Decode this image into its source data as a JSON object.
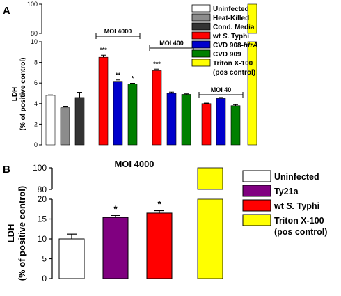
{
  "chart_data": [
    {
      "panel": "A",
      "type": "bar",
      "title": "",
      "ylabel_line1": "LDH",
      "ylabel_line2": "(% of positive control)",
      "yticks_lower": [
        "0",
        "2",
        "4",
        "6",
        "8",
        "10"
      ],
      "yticks_upper": [
        "80",
        "100"
      ],
      "ylim_lower": [
        0,
        10
      ],
      "ylim_upper": [
        80,
        100
      ],
      "axis_break": true,
      "groups": [
        {
          "label": "",
          "bars": [
            {
              "series": "Uninfected",
              "value": 4.8,
              "error": 0.05,
              "sig": ""
            },
            {
              "series": "Heat-Killed",
              "value": 3.6,
              "error": 0.15,
              "sig": ""
            },
            {
              "series": "Cond. Media",
              "value": 4.6,
              "error": 0.5,
              "sig": ""
            }
          ]
        },
        {
          "label": "MOI 4000",
          "bars": [
            {
              "series": "wt S. Typhi",
              "value": 8.5,
              "error": 0.2,
              "sig": "***"
            },
            {
              "series": "CVD 908-htrA",
              "value": 6.1,
              "error": 0.2,
              "sig": "**"
            },
            {
              "series": "CVD 909",
              "value": 5.9,
              "error": 0.08,
              "sig": "*"
            }
          ]
        },
        {
          "label": "MOI 400",
          "bars": [
            {
              "series": "wt S. Typhi",
              "value": 7.2,
              "error": 0.15,
              "sig": "***"
            },
            {
              "series": "CVD 908-htrA",
              "value": 5.0,
              "error": 0.12,
              "sig": ""
            },
            {
              "series": "CVD 909",
              "value": 4.9,
              "error": 0.05,
              "sig": ""
            }
          ]
        },
        {
          "label": "MOI 40",
          "bars": [
            {
              "series": "wt S. Typhi",
              "value": 4.0,
              "error": 0.05,
              "sig": ""
            },
            {
              "series": "CVD 908-htrA",
              "value": 4.5,
              "error": 0.1,
              "sig": ""
            },
            {
              "series": "CVD 909",
              "value": 3.8,
              "error": 0.1,
              "sig": ""
            }
          ]
        },
        {
          "label": "",
          "bars": [
            {
              "series": "Triton X-100 (pos control)",
              "value": 100,
              "error": 0,
              "sig": ""
            }
          ]
        }
      ],
      "legend": [
        {
          "name": "Uninfected",
          "color": "#ffffff"
        },
        {
          "name": "Heat-Killed",
          "color": "#8c8c8c"
        },
        {
          "name": "Cond. Media",
          "color": "#333333"
        },
        {
          "name_pre": "wt ",
          "name_ital": "S.",
          "name_post": " Typhi",
          "name": "wt S. Typhi",
          "color": "#ff0000"
        },
        {
          "name_pre": "CVD 908-",
          "name_ital": "htrA",
          "name_post": "",
          "name": "CVD 908-htrA",
          "color": "#0000cc"
        },
        {
          "name": "CVD 909",
          "color": "#008000"
        },
        {
          "name": "Triton X-100",
          "name2": "(pos control)",
          "color": "#ffff00"
        }
      ]
    },
    {
      "panel": "B",
      "type": "bar",
      "title": "MOI 4000",
      "ylabel_line1": "LDH",
      "ylabel_line2": "(% of positive control)",
      "yticks_lower": [
        "0",
        "5",
        "10",
        "15",
        "20"
      ],
      "yticks_upper": [
        "80",
        "100"
      ],
      "ylim_lower": [
        0,
        20
      ],
      "ylim_upper": [
        80,
        100
      ],
      "axis_break": true,
      "bars": [
        {
          "series": "Uninfected",
          "value": 10.0,
          "error": 1.2,
          "sig": ""
        },
        {
          "series": "Ty21a",
          "value": 15.4,
          "error": 0.5,
          "sig": "*"
        },
        {
          "series": "wt S. Typhi",
          "value": 16.5,
          "error": 0.6,
          "sig": "*"
        },
        {
          "series": "Triton X-100 (pos control)",
          "value": 100,
          "error": 0,
          "sig": ""
        }
      ],
      "legend": [
        {
          "name": "Uninfected",
          "color": "#ffffff"
        },
        {
          "name": "Ty21a",
          "color": "#800080"
        },
        {
          "name_pre": "wt ",
          "name_ital": "S.",
          "name_post": " Typhi",
          "name": "wt S. Typhi",
          "color": "#ff0000"
        },
        {
          "name": "Triton X-100",
          "name2": "(pos control)",
          "color": "#ffff00"
        }
      ]
    }
  ]
}
